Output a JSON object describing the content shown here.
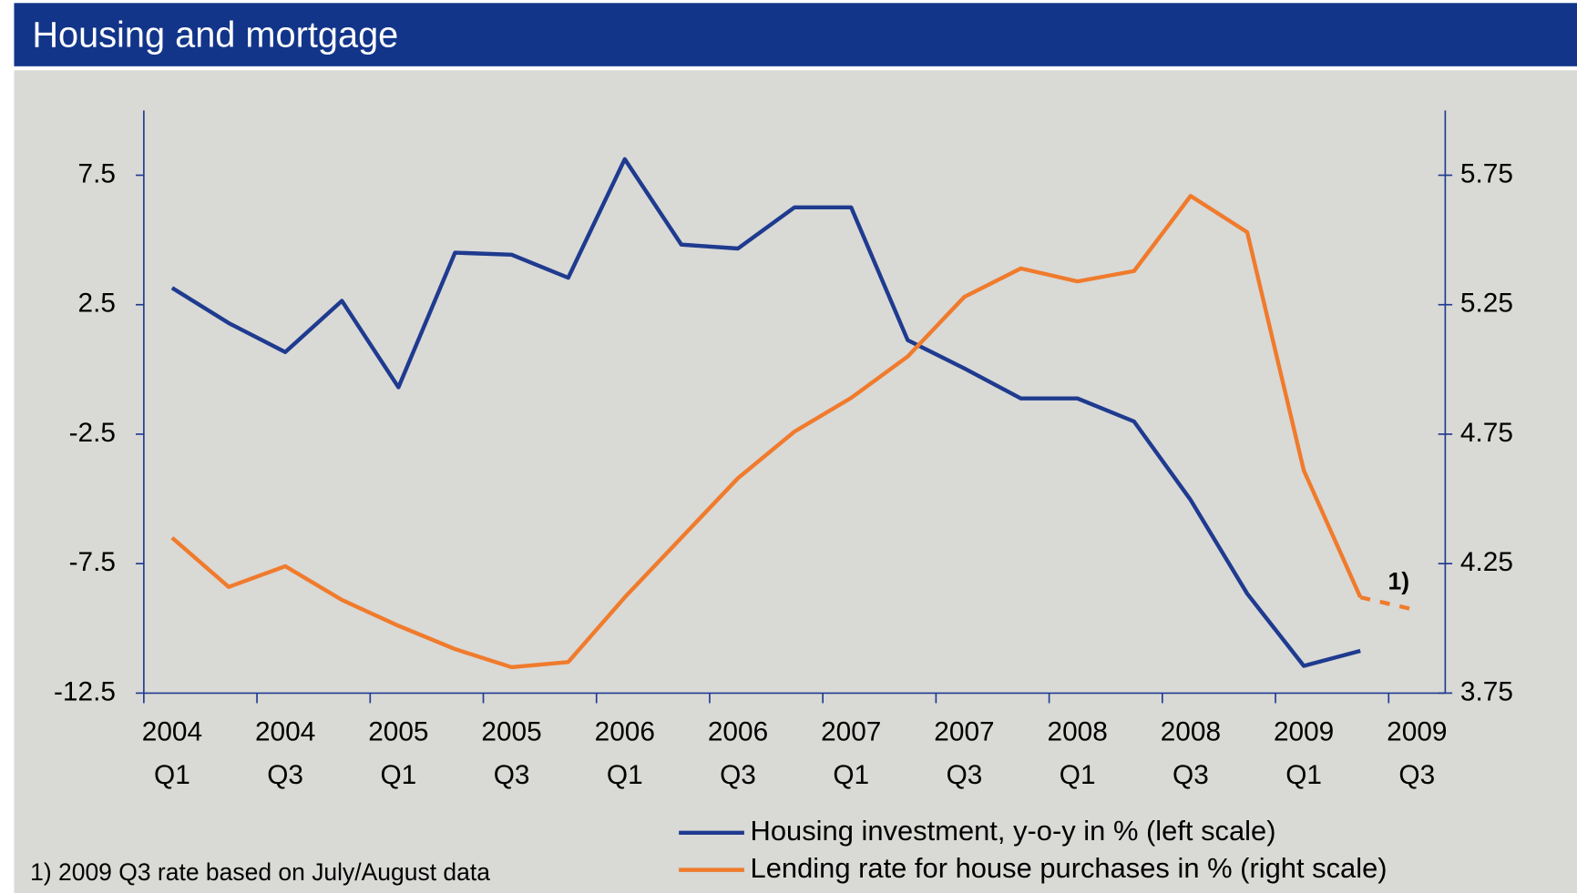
{
  "chart_data": {
    "type": "line",
    "title": "Housing and mortgage",
    "categories": [
      "2004 Q1",
      null,
      "2004 Q3",
      null,
      "2005 Q1",
      null,
      "2005 Q3",
      null,
      "2006 Q1",
      null,
      "2006 Q3",
      null,
      "2007 Q1",
      null,
      "2007 Q3",
      null,
      "2008 Q1",
      null,
      "2008 Q3",
      null,
      "2009 Q1",
      null,
      "2009 Q3"
    ],
    "series": [
      {
        "name": "Housing investment, y-o-y in % (left scale)",
        "color": "#1f3b8f",
        "values": [
          3.15,
          1.79,
          0.67,
          2.65,
          -0.69,
          4.51,
          4.43,
          3.54,
          8.12,
          4.82,
          4.67,
          6.26,
          6.26,
          1.13,
          0.04,
          -1.12,
          -1.12,
          -2.01,
          -5.04,
          -8.66,
          -11.45,
          -10.87,
          null
        ]
      },
      {
        "name": "Lending rate for house purchases in % (right scale)",
        "color": "#f07b2c",
        "axis": "y2",
        "dash_from_index": 21,
        "values": [
          4.35,
          4.16,
          4.24,
          4.11,
          4.01,
          3.92,
          3.85,
          3.87,
          4.12,
          4.35,
          4.58,
          4.76,
          4.89,
          5.05,
          5.28,
          5.39,
          5.34,
          5.38,
          5.67,
          5.53,
          4.61,
          4.12,
          4.07
        ]
      }
    ],
    "ylim": [
      -12.5,
      10
    ],
    "yticks": [
      -12.5,
      -7.5,
      -2.5,
      2.5,
      7.5
    ],
    "y2lim": [
      3.75,
      6.0
    ],
    "y2ticks": [
      3.75,
      4.25,
      4.75,
      5.25,
      5.75
    ],
    "annotation": "1)",
    "footnote": "1) 2009 Q3 rate based on July/August data",
    "grid": false
  }
}
